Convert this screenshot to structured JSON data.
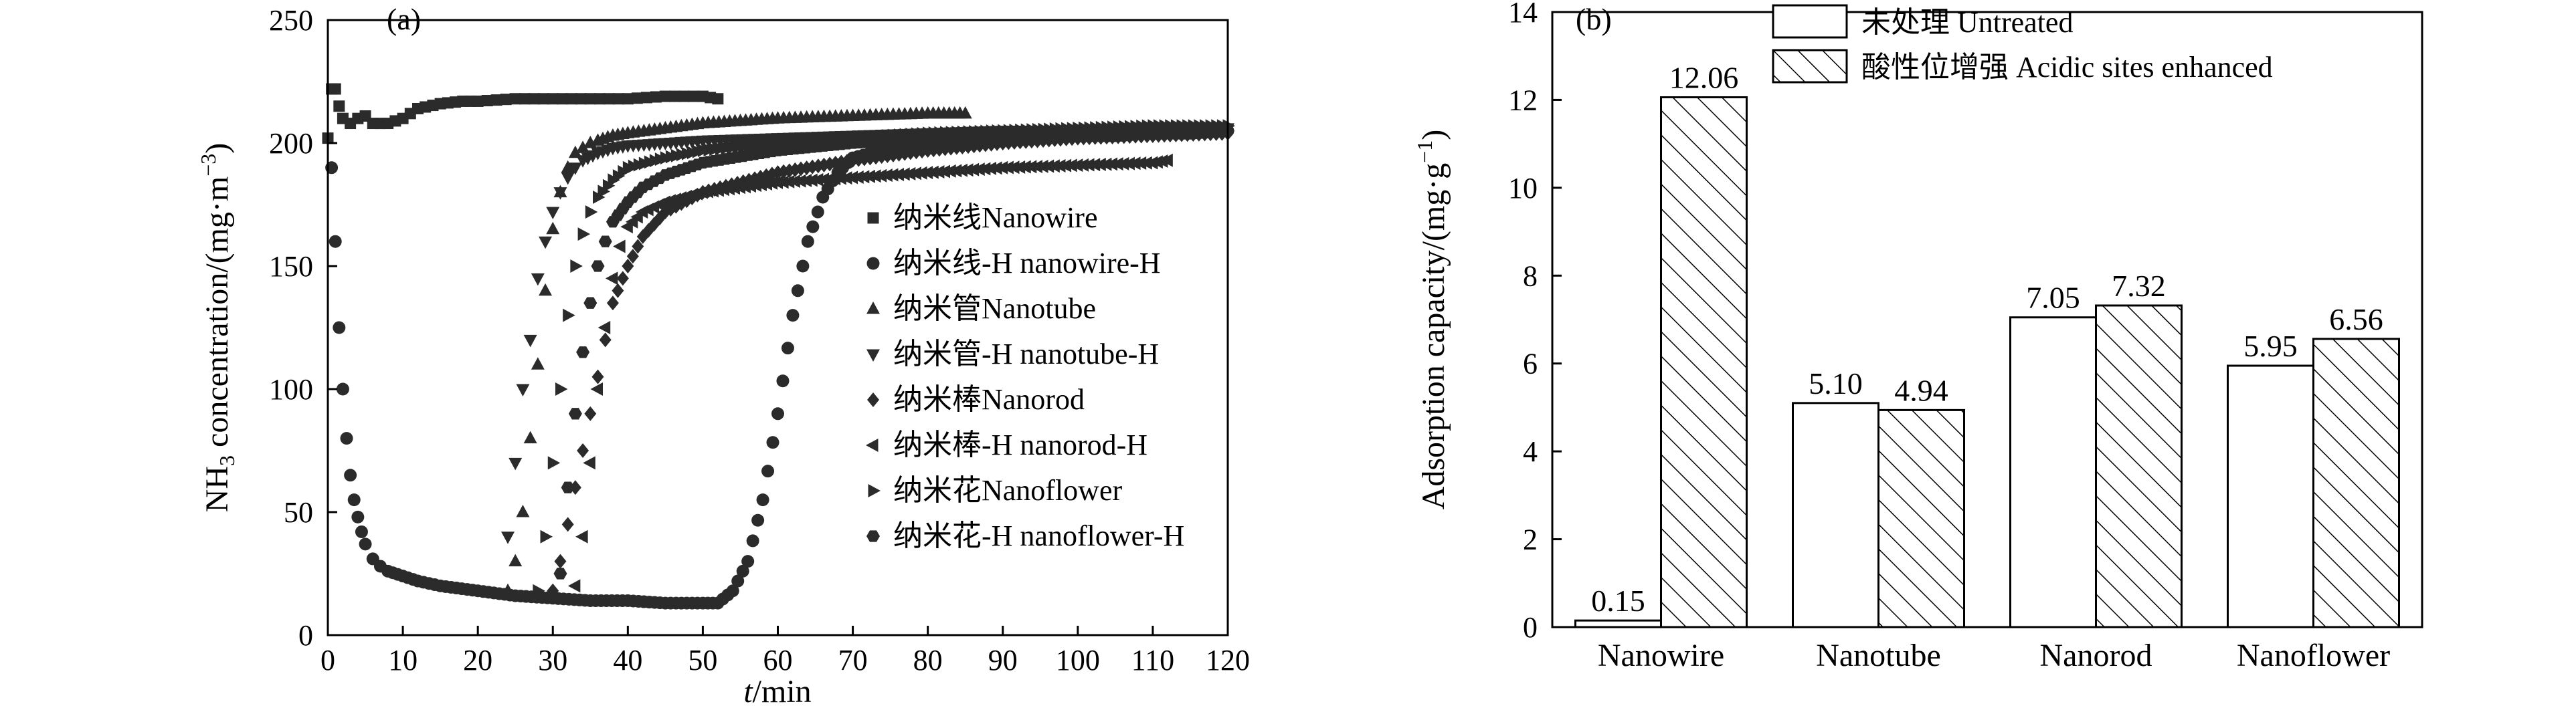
{
  "chart_data": [
    {
      "panel": "(a)",
      "type": "scatter",
      "xlabel_prefix": "t",
      "xlabel_suffix": "/min",
      "ylabel_main": "NH",
      "ylabel_sub": "3",
      "ylabel_tail_a": " concentration/(mg·m",
      "ylabel_sup": "−3",
      "ylabel_tail_b": ")",
      "xlim": [
        0,
        120
      ],
      "ylim": [
        0,
        250
      ],
      "xticks": [
        0,
        10,
        20,
        30,
        40,
        50,
        60,
        70,
        80,
        90,
        100,
        110,
        120
      ],
      "yticks": [
        0,
        50,
        100,
        150,
        200,
        250
      ],
      "grid": false,
      "legend_position": "right-center",
      "series": [
        {
          "name": "纳米线Nanowire",
          "marker": "square",
          "x": [
            0,
            0.5,
            1,
            1.5,
            2,
            3,
            4,
            5,
            6,
            8,
            10,
            12,
            15,
            18,
            20,
            25,
            30,
            35,
            40,
            45,
            50,
            52
          ],
          "y": [
            202,
            222,
            222,
            215,
            210,
            208,
            210,
            211,
            208,
            208,
            210,
            214,
            216,
            217,
            217,
            218,
            218,
            218,
            218,
            219,
            219,
            218
          ]
        },
        {
          "name": "纳米线-H nanowire-H",
          "marker": "circle",
          "x": [
            0.5,
            1,
            1.5,
            2,
            2.5,
            3,
            3.5,
            4,
            4.5,
            5,
            6,
            7,
            8,
            10,
            12,
            15,
            20,
            25,
            30,
            35,
            40,
            45,
            50,
            52,
            54,
            56,
            58,
            60,
            62,
            64,
            66,
            68,
            70,
            75,
            80,
            85,
            90,
            95,
            100,
            105,
            110,
            115,
            120
          ],
          "y": [
            190,
            160,
            125,
            100,
            80,
            65,
            55,
            48,
            42,
            37,
            31,
            28,
            26,
            24,
            22,
            20,
            18,
            16,
            15,
            14,
            14,
            13,
            13,
            13,
            18,
            30,
            55,
            90,
            130,
            160,
            178,
            188,
            194,
            198,
            200,
            201,
            202,
            202,
            203,
            203,
            204,
            204,
            205
          ]
        },
        {
          "name": "纳米管Nanotube",
          "marker": "triangle-up",
          "x": [
            24,
            25,
            26,
            27,
            28,
            29,
            30,
            31,
            32,
            33,
            34,
            35,
            36,
            38,
            40,
            45,
            50,
            55,
            60,
            70,
            80,
            85
          ],
          "y": [
            18,
            30,
            50,
            80,
            110,
            140,
            165,
            180,
            190,
            196,
            198,
            200,
            201,
            203,
            204,
            206,
            208,
            209,
            210,
            211,
            212,
            212
          ]
        },
        {
          "name": "纳米管-H nanotube-H",
          "marker": "triangle-down",
          "x": [
            24,
            25,
            26,
            27,
            28,
            29,
            30,
            31,
            32,
            33,
            34,
            36,
            38,
            40,
            45,
            50,
            60,
            70,
            80,
            90,
            100,
            110,
            120
          ],
          "y": [
            40,
            70,
            100,
            120,
            145,
            160,
            172,
            180,
            186,
            190,
            193,
            196,
            198,
            199,
            200,
            201,
            202,
            203,
            204,
            205,
            205,
            206,
            206
          ]
        },
        {
          "name": "纳米棒Nanorod",
          "marker": "diamond",
          "x": [
            30,
            31,
            32,
            33,
            34,
            35,
            36,
            37,
            38,
            40,
            42,
            45,
            50,
            60,
            70,
            80,
            90,
            100,
            110,
            120
          ],
          "y": [
            18,
            30,
            45,
            60,
            75,
            90,
            105,
            120,
            135,
            150,
            162,
            172,
            180,
            188,
            193,
            197,
            200,
            202,
            203,
            204
          ]
        },
        {
          "name": "纳米棒-H nanorod-H",
          "marker": "triangle-left",
          "x": [
            33,
            34,
            35,
            36,
            37,
            38,
            39,
            40,
            42,
            45,
            50,
            55,
            60,
            70,
            80,
            90,
            100,
            110,
            112
          ],
          "y": [
            20,
            40,
            70,
            100,
            125,
            145,
            158,
            166,
            172,
            176,
            180,
            182,
            184,
            186,
            188,
            190,
            191,
            192,
            193
          ]
        },
        {
          "name": "纳米花Nanoflower",
          "marker": "triangle-right",
          "x": [
            28,
            29,
            30,
            31,
            32,
            33,
            34,
            35,
            36,
            38,
            40,
            45,
            50,
            60,
            70,
            80,
            90,
            100,
            110,
            120
          ],
          "y": [
            18,
            40,
            70,
            100,
            130,
            150,
            163,
            172,
            178,
            185,
            190,
            194,
            197,
            200,
            202,
            204,
            205,
            206,
            207,
            207
          ]
        },
        {
          "name": "纳米花-H nanoflower-H",
          "marker": "hexagon",
          "x": [
            31,
            32,
            33,
            34,
            35,
            36,
            37,
            38,
            40,
            42,
            45,
            50,
            60,
            70,
            80,
            90,
            100,
            110,
            120
          ],
          "y": [
            25,
            60,
            90,
            115,
            135,
            150,
            160,
            168,
            176,
            182,
            187,
            192,
            197,
            200,
            202,
            203,
            204,
            205,
            205
          ]
        }
      ]
    },
    {
      "panel": "(b)",
      "type": "bar",
      "ylabel_main": "Adsorption capacity/(mg·g",
      "ylabel_sup": "−1",
      "ylabel_tail": ")",
      "categories": [
        "Nanowire",
        "Nanotube",
        "Nanorod",
        "Nanoflower"
      ],
      "ylim": [
        0,
        14
      ],
      "yticks": [
        0,
        2,
        4,
        6,
        8,
        10,
        12,
        14
      ],
      "grid": false,
      "legend_position": "top-right",
      "series": [
        {
          "name": "未处理  Untreated",
          "pattern": "none",
          "values": [
            0.15,
            5.1,
            7.05,
            5.95
          ],
          "labels": [
            "0.15",
            "5.10",
            "7.05",
            "5.95"
          ]
        },
        {
          "name": "酸性位增强 Acidic sites enhanced",
          "pattern": "hatch",
          "values": [
            12.06,
            4.94,
            7.32,
            6.56
          ],
          "labels": [
            "12.06",
            "4.94",
            "7.32",
            "6.56"
          ]
        }
      ]
    }
  ]
}
